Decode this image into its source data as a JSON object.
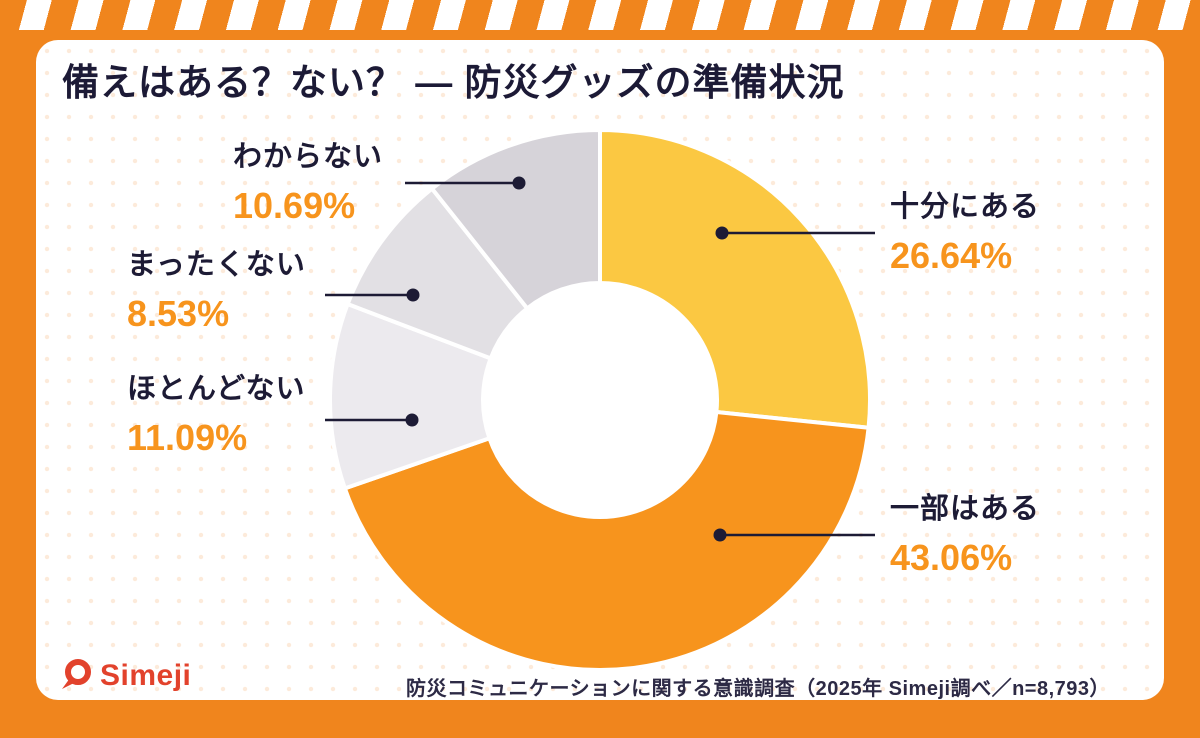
{
  "title": "備えはある？ない？ ― 防災グッズの準備状況",
  "callouts": {
    "sufficient": {
      "label": "十分にある",
      "value": "26.64%"
    },
    "partial": {
      "label": "一部はある",
      "value": "43.06%"
    },
    "mostly_none": {
      "label": "ほとんどない",
      "value": "11.09%"
    },
    "none_at_all": {
      "label": "まったくない",
      "value": "8.53%"
    },
    "unknown": {
      "label": "わからない",
      "value": "10.69%"
    }
  },
  "footer": {
    "source": "防災コミュニケーションに関する意識調査（2025年 Simeji調べ／n=8,793）"
  },
  "logo": {
    "text": "Simeji"
  },
  "colors": {
    "frame_orange": "#F0851D",
    "accent_orange": "#F7941D",
    "ink_navy": "#1D1B35",
    "logo_red": "#E2422C"
  },
  "chart_data": {
    "type": "pie",
    "title": "備えはある？ない？ ― 防災グッズの準備状況",
    "labels": [
      "十分にある",
      "一部はある",
      "ほとんどない",
      "まったくない",
      "わからない"
    ],
    "values": [
      26.64,
      43.06,
      11.09,
      8.53,
      10.69
    ],
    "unit": "%",
    "colors": [
      "#FBC842",
      "#F7941D",
      "#ECEAEE",
      "#E2E0E4",
      "#D6D3D9"
    ],
    "donut": true,
    "hole_ratio": 0.43,
    "start_angle_deg": 0,
    "direction": "clockwise",
    "legend_position": "callouts"
  }
}
